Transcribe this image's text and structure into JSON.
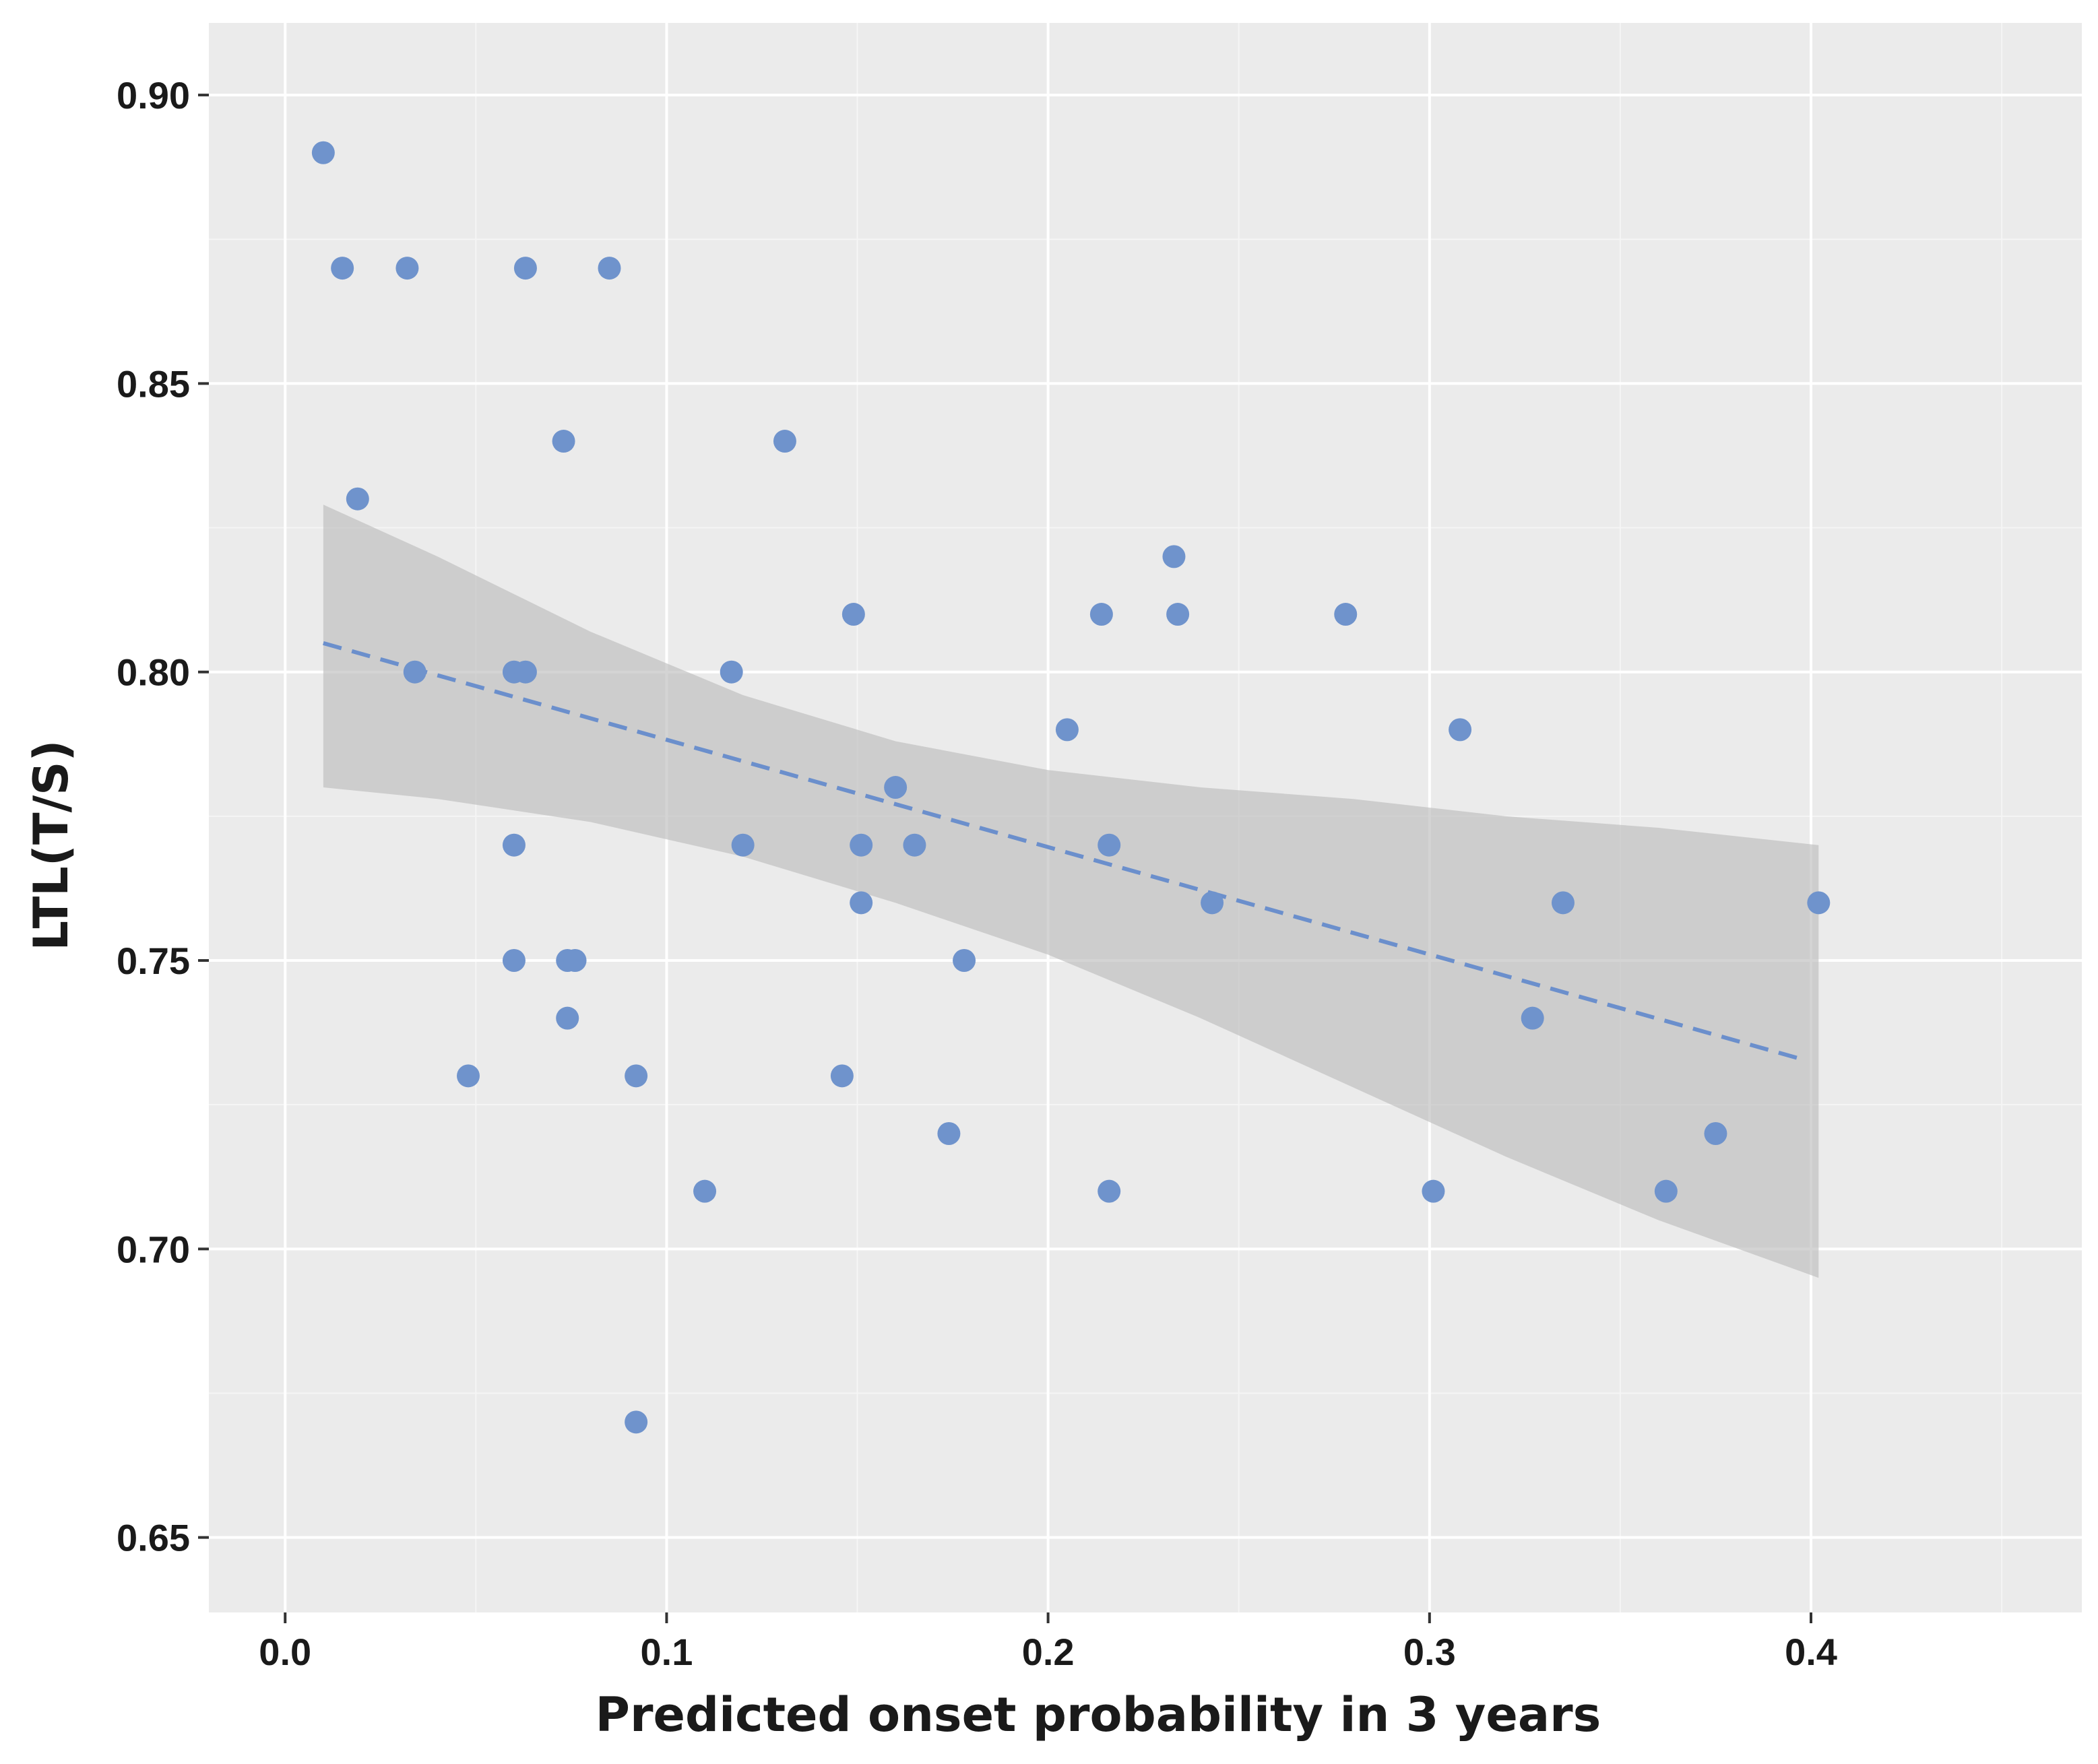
{
  "chart_data": {
    "type": "scatter",
    "title": "",
    "xlabel": "Predicted onset probability in 3 years",
    "ylabel": "LTL(T/S)",
    "xlim": [
      -0.02,
      0.471
    ],
    "ylim": [
      0.637,
      0.9125
    ],
    "x_ticks": [
      0.0,
      0.1,
      0.2,
      0.3,
      0.4
    ],
    "x_tick_labels": [
      "0.0",
      "0.1",
      "0.2",
      "0.3",
      "0.4"
    ],
    "y_ticks": [
      0.65,
      0.7,
      0.75,
      0.8,
      0.85,
      0.9
    ],
    "y_tick_labels": [
      "0.65",
      "0.70",
      "0.75",
      "0.80",
      "0.85",
      "0.90"
    ],
    "grid": true,
    "series": [
      {
        "name": "observations",
        "points": [
          {
            "x": 0.01,
            "y": 0.89
          },
          {
            "x": 0.015,
            "y": 0.87
          },
          {
            "x": 0.032,
            "y": 0.87
          },
          {
            "x": 0.063,
            "y": 0.87
          },
          {
            "x": 0.085,
            "y": 0.87
          },
          {
            "x": 0.073,
            "y": 0.84
          },
          {
            "x": 0.131,
            "y": 0.84
          },
          {
            "x": 0.019,
            "y": 0.83
          },
          {
            "x": 0.233,
            "y": 0.82
          },
          {
            "x": 0.149,
            "y": 0.81
          },
          {
            "x": 0.214,
            "y": 0.81
          },
          {
            "x": 0.234,
            "y": 0.81
          },
          {
            "x": 0.278,
            "y": 0.81
          },
          {
            "x": 0.034,
            "y": 0.8
          },
          {
            "x": 0.06,
            "y": 0.8
          },
          {
            "x": 0.063,
            "y": 0.8
          },
          {
            "x": 0.117,
            "y": 0.8
          },
          {
            "x": 0.205,
            "y": 0.79
          },
          {
            "x": 0.308,
            "y": 0.79
          },
          {
            "x": 0.16,
            "y": 0.78
          },
          {
            "x": 0.06,
            "y": 0.77
          },
          {
            "x": 0.12,
            "y": 0.77
          },
          {
            "x": 0.151,
            "y": 0.77
          },
          {
            "x": 0.165,
            "y": 0.77
          },
          {
            "x": 0.216,
            "y": 0.77
          },
          {
            "x": 0.151,
            "y": 0.76
          },
          {
            "x": 0.243,
            "y": 0.76
          },
          {
            "x": 0.335,
            "y": 0.76
          },
          {
            "x": 0.402,
            "y": 0.76
          },
          {
            "x": 0.06,
            "y": 0.75
          },
          {
            "x": 0.074,
            "y": 0.75
          },
          {
            "x": 0.076,
            "y": 0.75
          },
          {
            "x": 0.178,
            "y": 0.75
          },
          {
            "x": 0.074,
            "y": 0.74
          },
          {
            "x": 0.327,
            "y": 0.74
          },
          {
            "x": 0.048,
            "y": 0.73
          },
          {
            "x": 0.092,
            "y": 0.73
          },
          {
            "x": 0.146,
            "y": 0.73
          },
          {
            "x": 0.174,
            "y": 0.72
          },
          {
            "x": 0.375,
            "y": 0.72
          },
          {
            "x": 0.11,
            "y": 0.71
          },
          {
            "x": 0.216,
            "y": 0.71
          },
          {
            "x": 0.301,
            "y": 0.71
          },
          {
            "x": 0.362,
            "y": 0.71
          },
          {
            "x": 0.092,
            "y": 0.67
          }
        ]
      }
    ],
    "fit_line": {
      "style": "dashed",
      "x": [
        0.01,
        0.397
      ],
      "y": [
        0.805,
        0.733
      ]
    },
    "confidence_band": {
      "x": [
        0.01,
        0.04,
        0.08,
        0.12,
        0.16,
        0.2,
        0.24,
        0.28,
        0.32,
        0.36,
        0.402
      ],
      "upper": [
        0.829,
        0.82,
        0.807,
        0.796,
        0.788,
        0.783,
        0.78,
        0.778,
        0.775,
        0.773,
        0.77
      ],
      "lower": [
        0.78,
        0.778,
        0.774,
        0.768,
        0.76,
        0.751,
        0.74,
        0.728,
        0.716,
        0.705,
        0.695
      ]
    },
    "colors": {
      "points": "#6f93cc",
      "fit_line": "#6b8fcc",
      "band": "#bdbdbd",
      "panel": "#ebebeb"
    }
  }
}
